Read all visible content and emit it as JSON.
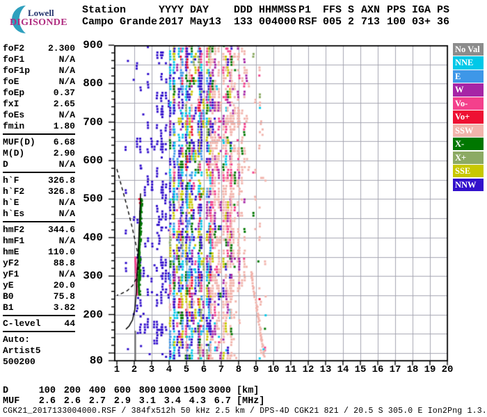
{
  "logo": {
    "line1": "Lowell",
    "line2": "DIGISONDE"
  },
  "header": {
    "columns": [
      {
        "label": "Station",
        "value": "Campo Grande"
      },
      {
        "label": "YYYY",
        "value": "2017"
      },
      {
        "label": "DAY",
        "value": "May13"
      },
      {
        "label": "DDD",
        "value": "133"
      },
      {
        "label": "HHMMSS",
        "value": "004000"
      },
      {
        "label": "P1",
        "value": "RSF"
      },
      {
        "label": "FFS",
        "value": "005"
      },
      {
        "label": "S",
        "value": "2"
      },
      {
        "label": "AXN",
        "value": "713"
      },
      {
        "label": "PPS",
        "value": "100"
      },
      {
        "label": "IGA",
        "value": "03+"
      },
      {
        "label": "PS",
        "value": "36"
      }
    ]
  },
  "params": {
    "groups": [
      {
        "rows": [
          [
            "foF2",
            "2.300"
          ],
          [
            "foF1",
            "N/A"
          ],
          [
            "foF1p",
            "N/A"
          ],
          [
            "foE",
            "N/A"
          ],
          [
            "foEp",
            "0.37"
          ],
          [
            "fxI",
            "2.65"
          ],
          [
            "foEs",
            "N/A"
          ],
          [
            "fmin",
            "1.80"
          ]
        ]
      },
      {
        "rows": [
          [
            "MUF(D)",
            "6.68"
          ],
          [
            "M(D)",
            "2.90"
          ],
          [
            "D",
            "N/A"
          ]
        ]
      },
      {
        "rows": [
          [
            "h`F",
            "326.8"
          ],
          [
            "h`F2",
            "326.8"
          ],
          [
            "h`E",
            "N/A"
          ],
          [
            "h`Es",
            "N/A"
          ]
        ]
      },
      {
        "rows": [
          [
            "hmF2",
            "344.6"
          ],
          [
            "hmF1",
            "N/A"
          ],
          [
            "hmE",
            "110.0"
          ],
          [
            "yF2",
            "88.8"
          ],
          [
            "yF1",
            "N/A"
          ],
          [
            "yE",
            "20.0"
          ],
          [
            "B0",
            "75.8"
          ],
          [
            "B1",
            "3.82"
          ]
        ]
      },
      {
        "rows": [
          [
            "C-level",
            "44"
          ]
        ]
      },
      {
        "rows": [
          [
            "Auto:",
            ""
          ],
          [
            "Artist5",
            ""
          ],
          [
            "500200",
            ""
          ]
        ]
      }
    ]
  },
  "legend": {
    "items": [
      {
        "label": "No Val",
        "color": "#8C8C8C"
      },
      {
        "label": "NNE",
        "color": "#00C8E8"
      },
      {
        "label": "E",
        "color": "#3E97E8"
      },
      {
        "label": "W",
        "color": "#A625A6"
      },
      {
        "label": "Vo-",
        "color": "#F4408C"
      },
      {
        "label": "Vo+",
        "color": "#EE1133"
      },
      {
        "label": "SSW",
        "color": "#F2B4AC"
      },
      {
        "label": "X-",
        "color": "#007700"
      },
      {
        "label": "X+",
        "color": "#8CAA64"
      },
      {
        "label": "SSE",
        "color": "#C8C800"
      },
      {
        "label": "NNW",
        "color": "#3311CC"
      }
    ]
  },
  "chart_data": {
    "type": "scatter",
    "title": "Digisonde RSF ionogram, Campo Grande 2017 day 133 00:40:00",
    "x_axis": {
      "unit": "MHz",
      "min": 1,
      "max": 20,
      "ticks": [
        1,
        2,
        3,
        4,
        5,
        6,
        7,
        8,
        9,
        10,
        11,
        12,
        13,
        14,
        15,
        16,
        17,
        18,
        19,
        20
      ]
    },
    "y_axis": {
      "unit": "km",
      "min": 80,
      "max": 900,
      "grid_step": 50,
      "minor_tick": 20,
      "labels": [
        900,
        800,
        700,
        600,
        500,
        400,
        300,
        200,
        80
      ]
    },
    "grid_color": "#A5A5B2",
    "noise_bands": [
      {
        "name": "left-stray",
        "f": [
          1.55,
          2.2
        ],
        "alt": [
          100,
          880
        ],
        "step": 0.13,
        "col_prob": 0.18,
        "inactive": 0.25,
        "density": 0.05,
        "run": 2,
        "colors": {
          "NNW": 1
        }
      },
      {
        "name": "blue-sparse",
        "f": [
          2.2,
          4.1
        ],
        "alt": [
          85,
          895
        ],
        "step": 0.11,
        "col_prob": 0.3,
        "inactive": 0.12,
        "density": 0.16,
        "run": 4,
        "colors": {
          "NNW": 1
        }
      },
      {
        "name": "multicolor-core",
        "f": [
          4.1,
          6.4
        ],
        "alt": [
          82,
          898
        ],
        "step": 0.12,
        "col_prob": 0.88,
        "inactive": 0.3,
        "density": 0.5,
        "run": 4,
        "colors": {
          "NNW": 0.25,
          "NNE": 0.14,
          "E": 0.11,
          "SSE": 0.14,
          "X-": 0.08,
          "Vo+": 0.07,
          "Vo-": 0.06,
          "W": 0.06,
          "X+": 0.04,
          "SSW": 0.05
        }
      },
      {
        "name": "salmon-mid",
        "f": [
          6.4,
          7.7
        ],
        "alt": [
          82,
          898
        ],
        "step": 0.12,
        "col_prob": 0.8,
        "inactive": 0.25,
        "density": 0.42,
        "run": 4,
        "colors": {
          "SSW": 0.55,
          "W": 0.16,
          "NNW": 0.07,
          "Vo-": 0.07,
          "X-": 0.05,
          "NNE": 0.04,
          "SSE": 0.06
        }
      },
      {
        "name": "salmon-high",
        "f": [
          7.7,
          8.6
        ],
        "alt": [
          255,
          898
        ],
        "step": 0.12,
        "col_prob": 0.7,
        "inactive": 0.18,
        "density": 0.3,
        "run": 3,
        "colors": {
          "SSW": 0.72,
          "W": 0.16,
          "Vo-": 0.06,
          "X-": 0.06
        }
      },
      {
        "name": "salmon-low",
        "f": [
          7.7,
          8.15
        ],
        "alt": [
          82,
          255
        ],
        "step": 0.13,
        "col_prob": 0.6,
        "inactive": 0.3,
        "density": 0.12,
        "run": 2,
        "colors": {
          "SSW": 1
        }
      },
      {
        "name": "right-sparse",
        "f": [
          8.85,
          9.6
        ],
        "alt": [
          82,
          898
        ],
        "step": 0.11,
        "col_prob": 0.5,
        "inactive": 0.15,
        "density": 0.12,
        "run": 2,
        "colors": {
          "SSW": 0.5,
          "NNE": 0.12,
          "X-": 0.12,
          "Vo+": 0.08,
          "Vo-": 0.06,
          "X+": 0.12
        }
      }
    ],
    "features": {
      "green_trace": {
        "f_start": 2.27,
        "alt_range": [
          252,
          500
        ],
        "curve": 0.13,
        "color": "X-"
      },
      "pink_trace": {
        "f_start": 2.16,
        "alt_range": [
          252,
          350
        ],
        "slope": -0.1,
        "color": "Vo-"
      },
      "red_marks": [
        [
          2.29,
          500
        ],
        [
          2.33,
          490
        ]
      ],
      "dashed_curve": [
        [
          1.0,
          578
        ],
        [
          1.3,
          528
        ],
        [
          1.6,
          478
        ],
        [
          1.85,
          432
        ],
        [
          2.05,
          392
        ],
        [
          2.18,
          362
        ],
        [
          2.24,
          338
        ],
        [
          2.22,
          315
        ],
        [
          2.1,
          292
        ],
        [
          1.9,
          275
        ],
        [
          1.6,
          262
        ],
        [
          1.25,
          254
        ],
        [
          1.0,
          250
        ]
      ],
      "solid_curve": [
        [
          2.36,
          515
        ],
        [
          2.32,
          462
        ],
        [
          2.27,
          408
        ],
        [
          2.22,
          358
        ],
        [
          2.17,
          310
        ],
        [
          2.12,
          262
        ],
        [
          2.04,
          215
        ],
        [
          1.9,
          186
        ],
        [
          1.7,
          170
        ],
        [
          1.52,
          162
        ]
      ],
      "gray_line": {
        "f": 2.06,
        "alt": [
          80,
          158
        ]
      },
      "salmon_tail": {
        "from": [
          8.7,
          310
        ],
        "to": [
          9.45,
          95
        ]
      }
    }
  },
  "dmuf": {
    "rows": [
      {
        "label": "D",
        "values": [
          "100",
          "200",
          "400",
          "600",
          "800",
          "1000",
          "1500",
          "3000"
        ],
        "unit": "[km]"
      },
      {
        "label": "MUF",
        "values": [
          "2.6",
          "2.6",
          "2.7",
          "2.9",
          "3.1",
          "3.4",
          "4.3",
          "6.7"
        ],
        "unit": "[MHz]"
      }
    ]
  },
  "status_line": "CGK21_2017133004000.RSF / 384fx512h 50 kHz 2.5 km / DPS-4D CGK21 821 / 20.5 S 305.0 E Ion2Png 1.3.20"
}
